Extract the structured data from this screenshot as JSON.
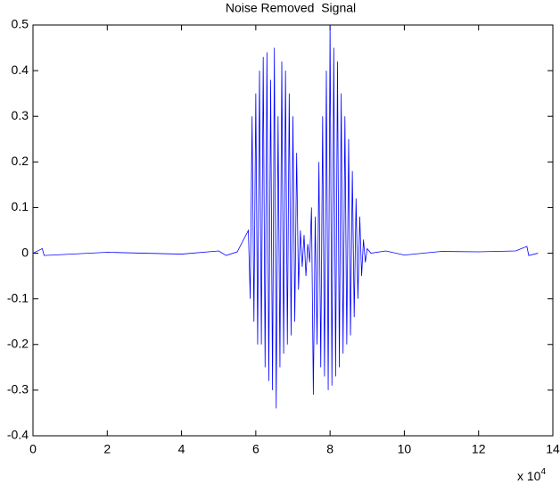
{
  "chart_data": {
    "type": "line",
    "title": "Noise Removed  Signal",
    "x_multiplier": {
      "base": "x 10",
      "exponent": "4"
    },
    "xlim": [
      0,
      14
    ],
    "xticks": [
      0,
      2,
      4,
      6,
      8,
      10,
      12,
      14
    ],
    "ylim": [
      -0.4,
      0.5
    ],
    "yticks": [
      -0.4,
      -0.3,
      -0.2,
      -0.1,
      0,
      0.1,
      0.2,
      0.3,
      0.4,
      0.5
    ],
    "grid": false,
    "series": [
      {
        "name": null,
        "color": "#0000ff",
        "x": [
          0,
          0.25,
          0.3,
          2,
          4,
          5,
          5.2,
          5.5,
          5.8,
          5.85,
          5.9,
          5.95,
          6.0,
          6.05,
          6.1,
          6.15,
          6.2,
          6.25,
          6.3,
          6.35,
          6.4,
          6.45,
          6.5,
          6.55,
          6.6,
          6.65,
          6.7,
          6.75,
          6.8,
          6.85,
          6.9,
          6.95,
          7.0,
          7.05,
          7.1,
          7.15,
          7.2,
          7.25,
          7.3,
          7.35,
          7.4,
          7.45,
          7.5,
          7.55,
          7.6,
          7.65,
          7.7,
          7.75,
          7.8,
          7.85,
          7.9,
          7.95,
          8.0,
          8.05,
          8.1,
          8.15,
          8.2,
          8.25,
          8.3,
          8.35,
          8.4,
          8.45,
          8.5,
          8.55,
          8.6,
          8.65,
          8.7,
          8.75,
          8.8,
          8.85,
          8.9,
          8.95,
          9.0,
          9.1,
          9.5,
          10,
          11,
          12,
          13,
          13.3,
          13.35,
          13.6
        ],
        "values": [
          0,
          0.01,
          -0.005,
          0.002,
          -0.002,
          0.005,
          -0.005,
          0.003,
          0.05,
          -0.1,
          0.3,
          -0.15,
          0.35,
          -0.2,
          0.4,
          -0.2,
          0.43,
          -0.25,
          0.44,
          -0.28,
          0.38,
          -0.3,
          0.45,
          -0.34,
          0.3,
          -0.25,
          0.42,
          -0.22,
          0.4,
          -0.2,
          0.35,
          -0.18,
          0.3,
          -0.15,
          0.22,
          -0.08,
          0.05,
          -0.03,
          0.04,
          -0.05,
          0.02,
          -0.02,
          0.1,
          -0.31,
          0.08,
          -0.2,
          0.2,
          -0.25,
          0.3,
          -0.27,
          0.4,
          -0.3,
          0.5,
          -0.29,
          0.45,
          -0.27,
          0.42,
          -0.25,
          0.35,
          -0.22,
          0.3,
          -0.2,
          0.25,
          -0.18,
          0.18,
          -0.14,
          0.12,
          -0.1,
          0.08,
          -0.05,
          0.03,
          -0.02,
          0.01,
          0,
          0.005,
          -0.004,
          0.004,
          0.003,
          0.005,
          0.015,
          -0.005,
          0
        ]
      }
    ]
  }
}
